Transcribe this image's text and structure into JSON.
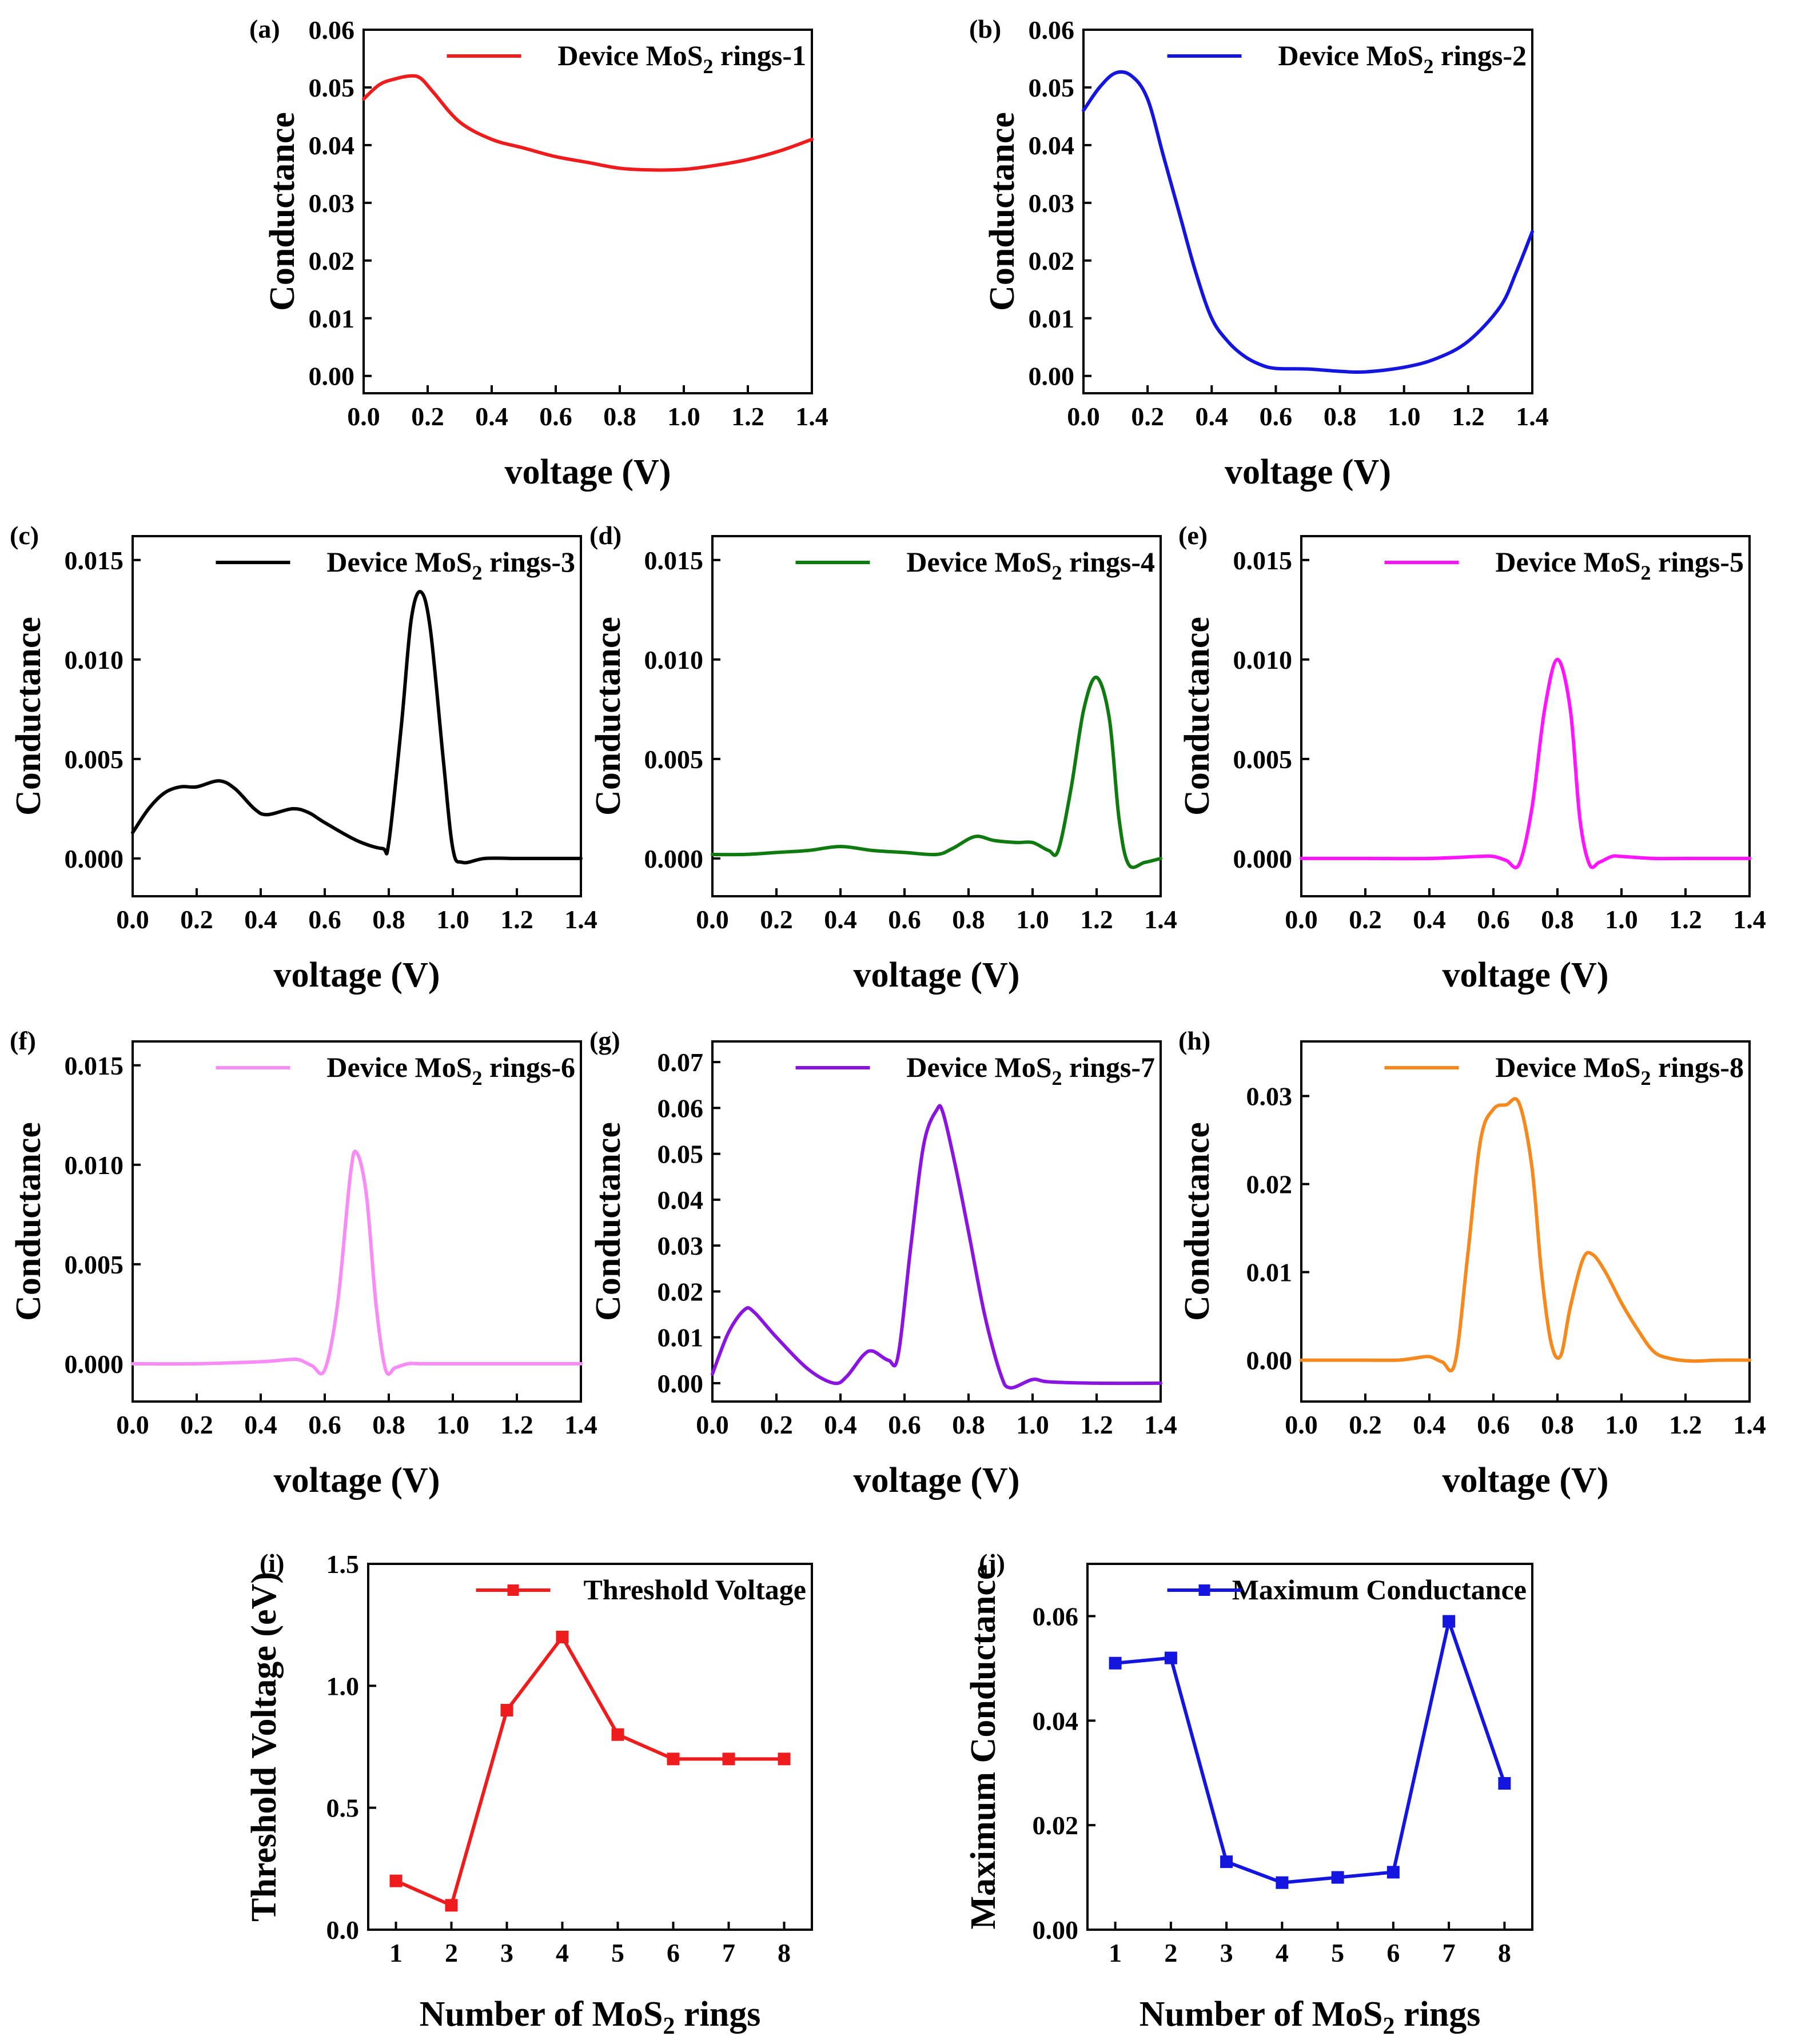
{
  "chart_data": [
    {
      "id": "a",
      "type": "line",
      "panel_label": "(a)",
      "xlabel": "voltage (V)",
      "ylabel": "Conductance",
      "xlim": [
        0,
        1.4
      ],
      "ylim": [
        -0.003,
        0.06
      ],
      "xticks": [
        "0.0",
        "0.2",
        "0.4",
        "0.6",
        "0.8",
        "1.0",
        "1.2",
        "1.4"
      ],
      "yticks": [
        "0.00",
        "0.01",
        "0.02",
        "0.03",
        "0.04",
        "0.05",
        "0.06"
      ],
      "legend": {
        "pre": "Device MoS",
        "sub": "2",
        "post": " rings-1"
      },
      "color": "#ee1c1c",
      "legend_position": "top-right",
      "series": [
        {
          "name": "Device MoS2 rings-1",
          "x": [
            0,
            0.05,
            0.1,
            0.15,
            0.18,
            0.22,
            0.3,
            0.4,
            0.5,
            0.6,
            0.7,
            0.8,
            0.9,
            1.0,
            1.1,
            1.2,
            1.3,
            1.4
          ],
          "y": [
            0.048,
            0.0505,
            0.0515,
            0.052,
            0.0515,
            0.049,
            0.044,
            0.041,
            0.0395,
            0.038,
            0.037,
            0.036,
            0.0357,
            0.0358,
            0.0365,
            0.0375,
            0.039,
            0.041
          ]
        }
      ]
    },
    {
      "id": "b",
      "type": "line",
      "panel_label": "(b)",
      "xlabel": "voltage (V)",
      "ylabel": "Conductance",
      "xlim": [
        0,
        1.4
      ],
      "ylim": [
        -0.003,
        0.06
      ],
      "xticks": [
        "0.0",
        "0.2",
        "0.4",
        "0.6",
        "0.8",
        "1.0",
        "1.2",
        "1.4"
      ],
      "yticks": [
        "0.00",
        "0.01",
        "0.02",
        "0.03",
        "0.04",
        "0.05",
        "0.06"
      ],
      "legend": {
        "pre": "Device MoS",
        "sub": "2",
        "post": " rings-2"
      },
      "color": "#1515e0",
      "legend_position": "top-right",
      "series": [
        {
          "name": "Device MoS2 rings-2",
          "x": [
            0,
            0.05,
            0.1,
            0.15,
            0.2,
            0.25,
            0.3,
            0.35,
            0.4,
            0.45,
            0.5,
            0.55,
            0.6,
            0.7,
            0.8,
            0.88,
            1.0,
            1.1,
            1.2,
            1.3,
            1.35,
            1.4
          ],
          "y": [
            0.046,
            0.05,
            0.0525,
            0.052,
            0.048,
            0.038,
            0.028,
            0.018,
            0.01,
            0.006,
            0.0035,
            0.002,
            0.0013,
            0.0012,
            0.0008,
            0.0007,
            0.0015,
            0.003,
            0.006,
            0.012,
            0.018,
            0.025
          ]
        }
      ]
    },
    {
      "id": "c",
      "type": "line",
      "panel_label": "(c)",
      "xlabel": "voltage (V)",
      "ylabel": "Conductance",
      "xlim": [
        0,
        1.4
      ],
      "ylim": [
        -0.0019,
        0.0162
      ],
      "xticks": [
        "0.0",
        "0.2",
        "0.4",
        "0.6",
        "0.8",
        "1.0",
        "1.2",
        "1.4"
      ],
      "yticks": [
        "0.000",
        "0.005",
        "0.010",
        "0.015"
      ],
      "legend": {
        "pre": "Device MoS",
        "sub": "2",
        "post": " rings-3"
      },
      "color": "#000000",
      "legend_position": "top-right",
      "series": [
        {
          "name": "Device MoS2 rings-3",
          "x": [
            0,
            0.05,
            0.1,
            0.15,
            0.2,
            0.27,
            0.32,
            0.38,
            0.42,
            0.5,
            0.55,
            0.6,
            0.7,
            0.78,
            0.8,
            0.84,
            0.87,
            0.9,
            0.93,
            0.97,
            1.0,
            1.03,
            1.1,
            1.2,
            1.3,
            1.4
          ],
          "y": [
            0.0013,
            0.0025,
            0.0033,
            0.0036,
            0.0036,
            0.0039,
            0.0035,
            0.0025,
            0.0022,
            0.0025,
            0.0023,
            0.0018,
            0.0009,
            0.0005,
            0.0008,
            0.0068,
            0.012,
            0.0134,
            0.0115,
            0.005,
            0.0005,
            -0.0002,
            0,
            0,
            0,
            0
          ]
        }
      ]
    },
    {
      "id": "d",
      "type": "line",
      "panel_label": "(d)",
      "xlabel": "voltage (V)",
      "ylabel": "Conductance",
      "xlim": [
        0,
        1.4
      ],
      "ylim": [
        -0.0019,
        0.0162
      ],
      "xticks": [
        "0.0",
        "0.2",
        "0.4",
        "0.6",
        "0.8",
        "1.0",
        "1.2",
        "1.4"
      ],
      "yticks": [
        "0.000",
        "0.005",
        "0.010",
        "0.015"
      ],
      "legend": {
        "pre": "Device MoS",
        "sub": "2",
        "post": " rings-4"
      },
      "color": "#0f7a0f",
      "legend_position": "top-right",
      "series": [
        {
          "name": "Device MoS2 rings-4",
          "x": [
            0,
            0.1,
            0.2,
            0.3,
            0.4,
            0.5,
            0.6,
            0.7,
            0.75,
            0.82,
            0.88,
            0.95,
            1.0,
            1.05,
            1.08,
            1.12,
            1.16,
            1.2,
            1.24,
            1.27,
            1.3,
            1.35,
            1.4
          ],
          "y": [
            0.0002,
            0.0002,
            0.0003,
            0.0004,
            0.0006,
            0.0004,
            0.0003,
            0.0002,
            0.0005,
            0.0011,
            0.0009,
            0.0008,
            0.0008,
            0.0004,
            0.0004,
            0.0035,
            0.0075,
            0.0091,
            0.007,
            0.002,
            -0.0003,
            -0.0002,
            0
          ]
        }
      ]
    },
    {
      "id": "e",
      "type": "line",
      "panel_label": "(e)",
      "xlabel": "voltage (V)",
      "ylabel": "Conductance",
      "xlim": [
        0,
        1.4
      ],
      "ylim": [
        -0.0019,
        0.0162
      ],
      "xticks": [
        "0.0",
        "0.2",
        "0.4",
        "0.6",
        "0.8",
        "1.0",
        "1.2",
        "1.4"
      ],
      "yticks": [
        "0.000",
        "0.005",
        "0.010",
        "0.015"
      ],
      "legend": {
        "pre": "Device MoS",
        "sub": "2",
        "post": " rings-5"
      },
      "color": "#ff14ff",
      "legend_position": "top-right",
      "series": [
        {
          "name": "Device MoS2 rings-5",
          "x": [
            0,
            0.2,
            0.4,
            0.55,
            0.6,
            0.64,
            0.68,
            0.72,
            0.76,
            0.8,
            0.84,
            0.87,
            0.9,
            0.93,
            0.97,
            1.0,
            1.1,
            1.2,
            1.4
          ],
          "y": [
            0,
            0,
            0,
            0.0001,
            0.0001,
            -0.0001,
            -0.0003,
            0.0025,
            0.0075,
            0.01,
            0.0075,
            0.002,
            -0.0003,
            -0.0002,
            0.0001,
            0.0001,
            0,
            0,
            0
          ]
        }
      ]
    },
    {
      "id": "f",
      "type": "line",
      "panel_label": "(f)",
      "xlabel": "voltage (V)",
      "ylabel": "Conductance",
      "xlim": [
        0,
        1.4
      ],
      "ylim": [
        -0.0019,
        0.0162
      ],
      "xticks": [
        "0.0",
        "0.2",
        "0.4",
        "0.6",
        "0.8",
        "1.0",
        "1.2",
        "1.4"
      ],
      "yticks": [
        "0.000",
        "0.005",
        "0.010",
        "0.015"
      ],
      "legend": {
        "pre": "Device MoS",
        "sub": "2",
        "post": " rings-6"
      },
      "color": "#f78cf7",
      "legend_position": "top-right",
      "series": [
        {
          "name": "Device MoS2 rings-6",
          "x": [
            0,
            0.2,
            0.4,
            0.48,
            0.52,
            0.56,
            0.6,
            0.64,
            0.68,
            0.7,
            0.73,
            0.76,
            0.79,
            0.82,
            0.86,
            0.9,
            1.0,
            1.2,
            1.4
          ],
          "y": [
            0,
            0,
            0.0001,
            0.0002,
            0.0002,
            -0.0001,
            -0.0003,
            0.003,
            0.0095,
            0.0106,
            0.0085,
            0.003,
            -0.0003,
            -0.0002,
            0,
            0,
            0,
            0,
            0
          ]
        }
      ]
    },
    {
      "id": "g",
      "type": "line",
      "panel_label": "(g)",
      "xlabel": "voltage (V)",
      "ylabel": "Conductance",
      "xlim": [
        0,
        1.4
      ],
      "ylim": [
        -0.004,
        0.0745
      ],
      "xticks": [
        "0.0",
        "0.2",
        "0.4",
        "0.6",
        "0.8",
        "1.0",
        "1.2",
        "1.4"
      ],
      "yticks": [
        "0.00",
        "0.01",
        "0.02",
        "0.03",
        "0.04",
        "0.05",
        "0.06",
        "0.07"
      ],
      "legend": {
        "pre": "Device MoS",
        "sub": "2",
        "post": " rings-7"
      },
      "color": "#8a14e0",
      "legend_position": "top-right",
      "series": [
        {
          "name": "Device MoS2 rings-7",
          "x": [
            0,
            0.05,
            0.1,
            0.13,
            0.2,
            0.3,
            0.38,
            0.42,
            0.47,
            0.5,
            0.55,
            0.58,
            0.62,
            0.66,
            0.7,
            0.72,
            0.76,
            0.8,
            0.85,
            0.9,
            0.93,
            1.0,
            1.05,
            1.2,
            1.4
          ],
          "y": [
            0.002,
            0.011,
            0.016,
            0.0155,
            0.01,
            0.003,
            0.0,
            0.0015,
            0.006,
            0.007,
            0.005,
            0.006,
            0.03,
            0.052,
            0.0595,
            0.059,
            0.047,
            0.033,
            0.015,
            0.002,
            -0.001,
            0.0008,
            0.0003,
            0,
            0
          ]
        }
      ]
    },
    {
      "id": "h",
      "type": "line",
      "panel_label": "(h)",
      "xlabel": "voltage (V)",
      "ylabel": "Conductance",
      "xlim": [
        0,
        1.4
      ],
      "ylim": [
        -0.0047,
        0.0362
      ],
      "xticks": [
        "0.0",
        "0.2",
        "0.4",
        "0.6",
        "0.8",
        "1.0",
        "1.2",
        "1.4"
      ],
      "yticks": [
        "0.00",
        "0.01",
        "0.02",
        "0.03"
      ],
      "legend": {
        "pre": "Device MoS",
        "sub": "2",
        "post": " rings-8"
      },
      "color": "#f5891e",
      "legend_position": "top-right",
      "series": [
        {
          "name": "Device MoS2 rings-8",
          "x": [
            0,
            0.2,
            0.3,
            0.35,
            0.4,
            0.44,
            0.48,
            0.52,
            0.56,
            0.6,
            0.64,
            0.68,
            0.72,
            0.75,
            0.78,
            0.81,
            0.84,
            0.88,
            0.91,
            0.95,
            1.0,
            1.05,
            1.1,
            1.15,
            1.22,
            1.3,
            1.4
          ],
          "y": [
            0,
            0,
            0,
            0.0002,
            0.0004,
            -0.0002,
            -0.0003,
            0.012,
            0.025,
            0.0285,
            0.029,
            0.0292,
            0.022,
            0.01,
            0.002,
            0.0005,
            0.006,
            0.0115,
            0.012,
            0.01,
            0.0065,
            0.0035,
            0.001,
            0.0002,
            -0.0001,
            0,
            0
          ]
        }
      ]
    },
    {
      "id": "i",
      "type": "line",
      "panel_label": "(i)",
      "xlabel_pre": "Number of MoS",
      "xlabel_sub": "2",
      "xlabel_post": " rings",
      "ylabel": "Threshold Voltage (eV)",
      "xlim": [
        0.5,
        8.5
      ],
      "ylim": [
        0,
        1.5
      ],
      "xticks": [
        "1",
        "2",
        "3",
        "4",
        "5",
        "6",
        "7",
        "8"
      ],
      "yticks": [
        "0.0",
        "0.5",
        "1.0",
        "1.5"
      ],
      "legend": {
        "pre": "Threshold Voltage",
        "sub": "",
        "post": ""
      },
      "color": "#ee1c1c",
      "legend_position": "top-right",
      "markers": "square",
      "series": [
        {
          "name": "Threshold Voltage",
          "x": [
            1,
            2,
            3,
            4,
            5,
            6,
            7,
            8
          ],
          "y": [
            0.2,
            0.1,
            0.9,
            1.2,
            0.8,
            0.7,
            0.7,
            0.7
          ]
        }
      ]
    },
    {
      "id": "j",
      "type": "line",
      "panel_label": "(j)",
      "xlabel_pre": "Number of MoS",
      "xlabel_sub": "2",
      "xlabel_post": " rings",
      "ylabel": "Maximum Conductance",
      "xlim": [
        0.5,
        8.5
      ],
      "ylim": [
        0,
        0.07
      ],
      "xticks": [
        "1",
        "2",
        "3",
        "4",
        "5",
        "6",
        "7",
        "8"
      ],
      "yticks": [
        "0.00",
        "0.02",
        "0.04",
        "0.06"
      ],
      "legend": {
        "pre": "Maximum Conductance",
        "sub": "",
        "post": ""
      },
      "color": "#1515e0",
      "legend_position": "top-right",
      "markers": "square",
      "series": [
        {
          "name": "Maximum Conductance",
          "x": [
            1,
            2,
            3,
            4,
            5,
            6,
            7,
            8
          ],
          "y": [
            0.051,
            0.052,
            0.013,
            0.009,
            0.01,
            0.011,
            0.059,
            0.028
          ]
        }
      ]
    }
  ]
}
